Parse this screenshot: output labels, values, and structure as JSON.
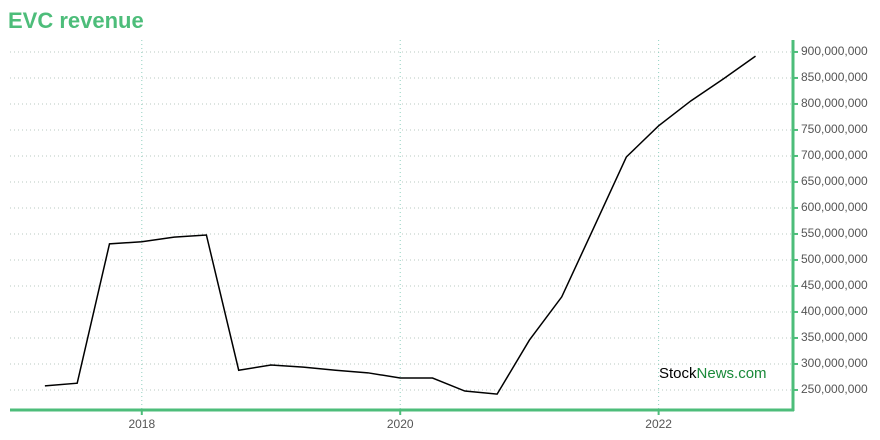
{
  "chart_data": {
    "type": "line",
    "title": "EVC revenue",
    "x": [
      2017.25,
      2017.5,
      2017.75,
      2018,
      2018.25,
      2018.5,
      2018.75,
      2019,
      2019.25,
      2019.5,
      2019.75,
      2020,
      2020.25,
      2020.5,
      2020.75,
      2021,
      2021.25,
      2021.5,
      2021.75,
      2022,
      2022.25,
      2022.5,
      2022.75
    ],
    "series": [
      {
        "color": "#000000",
        "values": [
          258000000,
          263000000,
          531000000,
          535000000,
          544000000,
          548000000,
          288000000,
          298000000,
          294000000,
          288000000,
          283000000,
          273000000,
          273000000,
          248000000,
          242000000,
          346000000,
          429000000,
          563000000,
          698000000,
          758000000,
          806000000,
          848000000,
          892000000
        ]
      }
    ],
    "xlim": [
      2016.98,
      2023.04
    ],
    "xticks": [
      2018,
      2020,
      2022
    ],
    "ylim": [
      211500000,
      923000000
    ],
    "yticks": [
      {
        "value": 250000000,
        "label": "250,000,000"
      },
      {
        "value": 300000000,
        "label": "300,000,000"
      },
      {
        "value": 350000000,
        "label": "350,000,000"
      },
      {
        "value": 400000000,
        "label": "400,000,000"
      },
      {
        "value": 450000000,
        "label": "450,000,000"
      },
      {
        "value": 500000000,
        "label": "500,000,000"
      },
      {
        "value": 550000000,
        "label": "550,000,000"
      },
      {
        "value": 600000000,
        "label": "600,000,000"
      },
      {
        "value": 650000000,
        "label": "650,000,000"
      },
      {
        "value": 700000000,
        "label": "700,000,000"
      },
      {
        "value": 750000000,
        "label": "750,000,000"
      },
      {
        "value": 800000000,
        "label": "800,000,000"
      },
      {
        "value": 850000000,
        "label": "850,000,000"
      },
      {
        "value": 900000000,
        "label": "900,000,000"
      }
    ],
    "grid": true,
    "axis_color": "#4dbd7a"
  },
  "watermark": {
    "prefix": "Stock",
    "suffix": "News.com"
  }
}
